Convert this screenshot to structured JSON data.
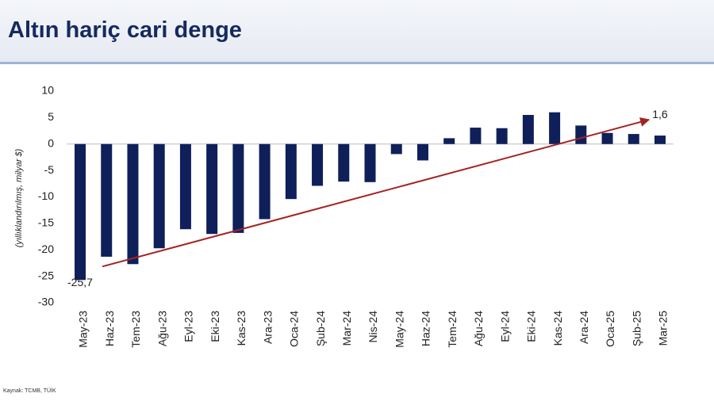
{
  "chart_data": {
    "type": "bar",
    "title": "Altın hariç cari denge",
    "y_label": "(yıllıklandırılmış, milyar $)",
    "source": "Kaynak: TCMB, TÜİK",
    "categories": [
      "May-23",
      "Haz-23",
      "Tem-23",
      "Ağu-23",
      "Eyl-23",
      "Eki-23",
      "Kas-23",
      "Ara-23",
      "Oca-24",
      "Şub-24",
      "Mar-24",
      "Nis-24",
      "May-24",
      "Haz-24",
      "Tem-24",
      "Ağu-24",
      "Eyl-24",
      "Eki-24",
      "Kas-24",
      "Ara-24",
      "Oca-25",
      "Şub-25",
      "Mar-25"
    ],
    "values": [
      -25.7,
      -21.3,
      -22.7,
      -19.7,
      -16.1,
      -17.0,
      -16.8,
      -14.2,
      -10.4,
      -7.9,
      -7.1,
      -7.2,
      -1.9,
      -3.1,
      1.1,
      3.1,
      3.0,
      5.5,
      6.0,
      3.5,
      2.1,
      1.9,
      1.6
    ],
    "value_labels": [
      "-25,7",
      null,
      null,
      null,
      null,
      null,
      null,
      null,
      null,
      null,
      null,
      null,
      null,
      null,
      null,
      null,
      null,
      null,
      null,
      null,
      null,
      null,
      "1,6"
    ],
    "color": "#0f1f5a",
    "trend_color": "#a52222",
    "ylim": [
      -30,
      10
    ],
    "yticks": [
      -30,
      -25,
      -20,
      -15,
      -10,
      -5,
      0,
      5,
      10
    ],
    "grid": false
  }
}
